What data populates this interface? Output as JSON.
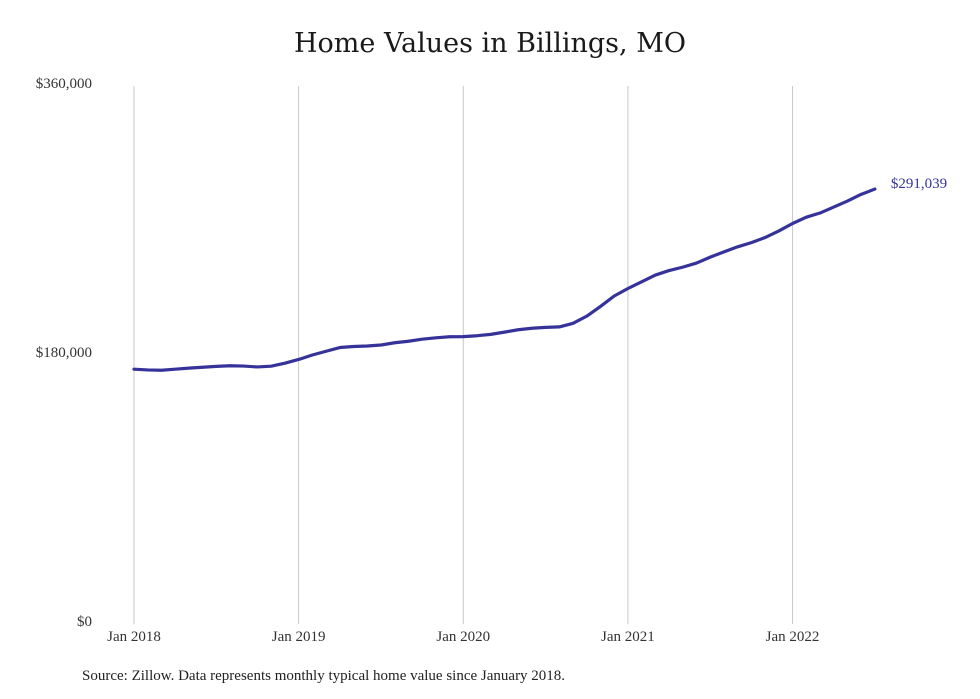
{
  "chart_data": {
    "type": "line",
    "title": "Home Values in Billings, MO",
    "xlabel": "",
    "ylabel": "",
    "ylim": [
      0,
      360000
    ],
    "xlim": [
      "2018-01",
      "2022-07"
    ],
    "yticks": [
      0,
      180000,
      360000
    ],
    "ytick_labels": [
      "$0",
      "$180,000",
      "$360,000"
    ],
    "xticks": [
      "2018-01",
      "2019-01",
      "2020-01",
      "2021-01",
      "2022-01"
    ],
    "xtick_labels": [
      "Jan 2018",
      "Jan 2019",
      "Jan 2020",
      "Jan 2021",
      "Jan 2022"
    ],
    "grid": "vertical",
    "legend": "none",
    "end_label": "$291,039",
    "line_color": "#35339a",
    "grid_color": "#c8c8c8",
    "x": [
      "2018-01",
      "2018-02",
      "2018-03",
      "2018-04",
      "2018-05",
      "2018-06",
      "2018-07",
      "2018-08",
      "2018-09",
      "2018-10",
      "2018-11",
      "2018-12",
      "2019-01",
      "2019-02",
      "2019-03",
      "2019-04",
      "2019-05",
      "2019-06",
      "2019-07",
      "2019-08",
      "2019-09",
      "2019-10",
      "2019-11",
      "2019-12",
      "2020-01",
      "2020-02",
      "2020-03",
      "2020-04",
      "2020-05",
      "2020-06",
      "2020-07",
      "2020-08",
      "2020-09",
      "2020-10",
      "2020-11",
      "2020-12",
      "2021-01",
      "2021-02",
      "2021-03",
      "2021-04",
      "2021-05",
      "2021-06",
      "2021-07",
      "2021-08",
      "2021-09",
      "2021-10",
      "2021-11",
      "2021-12",
      "2022-01",
      "2022-02",
      "2022-03",
      "2022-04",
      "2022-05",
      "2022-06",
      "2022-07"
    ],
    "series": [
      {
        "values": [
          170500,
          170000,
          169800,
          170500,
          171200,
          171800,
          172400,
          172800,
          172600,
          172000,
          172500,
          174500,
          177000,
          180000,
          182500,
          185000,
          185700,
          186000,
          186700,
          188200,
          189200,
          190600,
          191500,
          192200,
          192300,
          192900,
          193800,
          195300,
          196900,
          197900,
          198500,
          198800,
          201200,
          206000,
          212500,
          219500,
          224500,
          229000,
          233500,
          236500,
          238800,
          241500,
          245500,
          249000,
          252400,
          255200,
          258600,
          263000,
          268000,
          272200,
          275000,
          279000,
          283000,
          287500,
          291039
        ]
      }
    ]
  },
  "footer": {
    "source": "Source: Zillow. Data represents monthly typical home value since January 2018."
  }
}
